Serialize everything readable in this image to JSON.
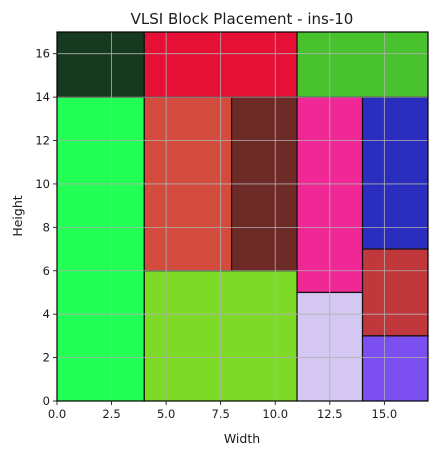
{
  "chart_data": {
    "type": "rectangles",
    "title": "VLSI Block Placement - ins-10",
    "xlabel": "Width",
    "ylabel": "Height",
    "xlim": [
      0,
      17
    ],
    "ylim": [
      0,
      17
    ],
    "grid": true,
    "x_ticks": [
      0,
      2.5,
      5,
      7.5,
      10,
      12.5,
      15
    ],
    "x_tick_labels": [
      "0.0",
      "2.5",
      "5.0",
      "7.5",
      "10.0",
      "12.5",
      "15.0"
    ],
    "y_ticks": [
      0,
      2,
      4,
      6,
      8,
      10,
      12,
      14,
      16
    ],
    "y_tick_labels": [
      "0",
      "2",
      "4",
      "6",
      "8",
      "10",
      "12",
      "14",
      "16"
    ],
    "blocks": [
      {
        "x": 0,
        "y": 0,
        "w": 4,
        "h": 14,
        "color": "#22ff55"
      },
      {
        "x": 0,
        "y": 14,
        "w": 4,
        "h": 3,
        "color": "#163a20"
      },
      {
        "x": 4,
        "y": 14,
        "w": 7,
        "h": 3,
        "color": "#e60f35"
      },
      {
        "x": 11,
        "y": 14,
        "w": 6,
        "h": 3,
        "color": "#48c22d"
      },
      {
        "x": 4,
        "y": 6,
        "w": 4,
        "h": 8,
        "color": "#d24b3c"
      },
      {
        "x": 8,
        "y": 6,
        "w": 3,
        "h": 8,
        "color": "#6e2a27"
      },
      {
        "x": 4,
        "y": 0,
        "w": 7,
        "h": 6,
        "color": "#7ddb28"
      },
      {
        "x": 11,
        "y": 5,
        "w": 3,
        "h": 9,
        "color": "#f02896"
      },
      {
        "x": 11,
        "y": 0,
        "w": 3,
        "h": 5,
        "color": "#d4c8f2"
      },
      {
        "x": 14,
        "y": 7,
        "w": 3,
        "h": 7,
        "color": "#2b2dbe"
      },
      {
        "x": 14,
        "y": 3,
        "w": 3,
        "h": 4,
        "color": "#c0373c"
      },
      {
        "x": 14,
        "y": 0,
        "w": 3,
        "h": 3,
        "color": "#7c50f0"
      }
    ]
  }
}
